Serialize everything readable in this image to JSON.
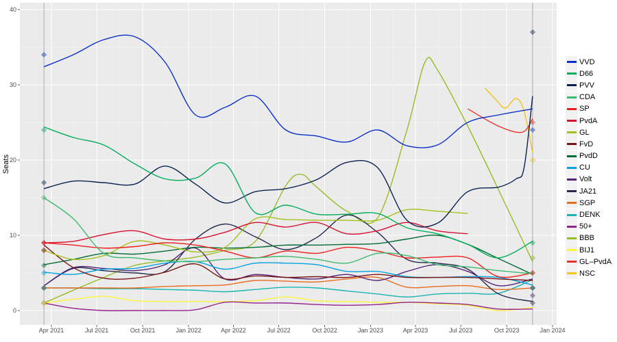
{
  "chart_data": {
    "type": "line",
    "ylabel": "Seats",
    "xlabel": "",
    "ylim": [
      -2,
      41
    ],
    "xlim": [
      "2021-02-01",
      "2024-01-15"
    ],
    "yticks": [
      0,
      10,
      20,
      30,
      40
    ],
    "xticks": [
      {
        "date": "2021-04-01",
        "label": "Apr 2021"
      },
      {
        "date": "2021-07-01",
        "label": "Jul 2021"
      },
      {
        "date": "2021-10-01",
        "label": "Oct 2021"
      },
      {
        "date": "2022-01-01",
        "label": "Jan 2022"
      },
      {
        "date": "2022-04-01",
        "label": "Apr 2022"
      },
      {
        "date": "2022-07-01",
        "label": "Jul 2022"
      },
      {
        "date": "2022-10-01",
        "label": "Oct 2022"
      },
      {
        "date": "2023-01-01",
        "label": "Jan 2023"
      },
      {
        "date": "2023-04-01",
        "label": "Apr 2023"
      },
      {
        "date": "2023-07-01",
        "label": "Jul 2023"
      },
      {
        "date": "2023-10-01",
        "label": "Oct 2023"
      },
      {
        "date": "2024-01-01",
        "label": "Jan 2024"
      }
    ],
    "grid": true,
    "legend_position": "right",
    "election_dates": [
      "2021-03-17",
      "2023-11-22"
    ],
    "dates": [
      "2021-03-17",
      "2021-05-15",
      "2021-07-15",
      "2021-09-15",
      "2021-11-15",
      "2022-01-15",
      "2022-03-15",
      "2022-05-15",
      "2022-07-15",
      "2022-09-15",
      "2022-11-15",
      "2023-01-15",
      "2023-03-15",
      "2023-05-15",
      "2023-07-15",
      "2023-09-15",
      "2023-11-22"
    ],
    "series": [
      {
        "name": "VVD",
        "color": "#0a2fc8",
        "values": [
          32.4,
          34,
          36,
          36.4,
          33,
          26,
          27,
          28.5,
          24,
          23.2,
          22.4,
          24,
          21.9,
          22,
          25,
          26,
          26.8
        ]
      },
      {
        "name": "D66",
        "color": "#00ae5a",
        "values": [
          24.4,
          23,
          22,
          19.5,
          17.5,
          17.6,
          19.5,
          13,
          14,
          12.8,
          12.8,
          12.9,
          11,
          10.2,
          8.8,
          7,
          9.2
        ]
      },
      {
        "name": "PVV",
        "color": "#0b2050",
        "points": [
          [
            "2021-03-17",
            16.2
          ],
          [
            "2021-05-15",
            17.2
          ],
          [
            "2021-07-15",
            17
          ],
          [
            "2021-09-15",
            16.8
          ],
          [
            "2021-11-15",
            19.2
          ],
          [
            "2022-01-15",
            16.8
          ],
          [
            "2022-03-15",
            14.3
          ],
          [
            "2022-05-15",
            15.8
          ],
          [
            "2022-07-15",
            16.2
          ],
          [
            "2022-09-15",
            17.4
          ],
          [
            "2022-11-15",
            19.7
          ],
          [
            "2023-01-15",
            19
          ],
          [
            "2023-03-15",
            12
          ],
          [
            "2023-05-15",
            11.6
          ],
          [
            "2023-07-15",
            15.8
          ],
          [
            "2023-09-15",
            16.4
          ],
          [
            "2023-10-20",
            17.5
          ],
          [
            "2023-11-05",
            19
          ],
          [
            "2023-11-22",
            28.5
          ]
        ]
      },
      {
        "name": "CDA",
        "color": "#3cbb6c",
        "values": [
          15,
          12.2,
          7.6,
          7,
          6.6,
          6.5,
          6.8,
          7,
          7.2,
          6.8,
          6.3,
          7.6,
          7.3,
          6.1,
          5.8,
          5.3,
          4.9
        ]
      },
      {
        "name": "SP",
        "color": "#ee1c1c",
        "values": [
          9,
          8.7,
          8.3,
          8.5,
          9,
          8.7,
          7.9,
          7,
          7.9,
          7.6,
          8.4,
          7.9,
          7,
          7.1,
          7,
          4.5,
          5
        ]
      },
      {
        "name": "PvdA",
        "color": "#d6102f",
        "values": [
          9,
          9.2,
          10.1,
          10.6,
          9.5,
          9.5,
          10.4,
          11.7,
          11.1,
          11.7,
          10.2,
          10.6,
          11.7,
          10.6,
          10.2,
          null,
          null
        ]
      },
      {
        "name": "GL",
        "color": "#a3c21c",
        "values": [
          8,
          6.8,
          7.3,
          9.2,
          8.7,
          7.8,
          8.4,
          12.2,
          12.1,
          12,
          12,
          12,
          13.4,
          13.2,
          12.9,
          null,
          null
        ]
      },
      {
        "name": "FvD",
        "color": "#7a1414",
        "values": [
          8.7,
          5.7,
          4.3,
          4.3,
          5.1,
          6.2,
          4.2,
          4.6,
          4.4,
          4.5,
          4.4,
          4.8,
          4.4,
          4.4,
          4.4,
          4.2,
          4
        ]
      },
      {
        "name": "PvdD",
        "color": "#006b35",
        "values": [
          6.1,
          6.8,
          7.6,
          7.5,
          7.9,
          8.4,
          8.3,
          8.4,
          8.7,
          8.7,
          8.8,
          8.9,
          9.5,
          10,
          8.8,
          6.9,
          4.8
        ]
      },
      {
        "name": "CU",
        "color": "#00a3e0",
        "values": [
          5.1,
          4.8,
          5.5,
          5.6,
          6.3,
          6.5,
          5.5,
          6.3,
          6.3,
          6.1,
          5.2,
          5.2,
          4.5,
          4.4,
          4.5,
          4.4,
          3.4
        ]
      },
      {
        "name": "Volt",
        "color": "#502379",
        "values": [
          3.3,
          5.7,
          5.6,
          5.3,
          6.1,
          8.3,
          4.2,
          4.8,
          4.4,
          4.2,
          4.8,
          4,
          5.2,
          6.1,
          5.2,
          3.3,
          4.2
        ]
      },
      {
        "name": "JA21",
        "color": "#242a4b",
        "values": [
          3.3,
          5.6,
          5.3,
          5,
          5.2,
          9.5,
          11.5,
          9.8,
          8.1,
          9.7,
          12.7,
          10.4,
          6.8,
          6.3,
          5.5,
          2.2,
          1.2
        ]
      },
      {
        "name": "SGP",
        "color": "#e96b1c",
        "values": [
          3,
          3,
          3,
          3,
          3.2,
          3.3,
          3.4,
          4,
          3.9,
          3.8,
          4.2,
          4.4,
          3.1,
          3.2,
          3.3,
          2.8,
          3
        ]
      },
      {
        "name": "DENK",
        "color": "#17b5b1",
        "values": [
          3,
          3,
          2.9,
          2.9,
          2.8,
          2.7,
          2.5,
          2.8,
          3.1,
          3,
          2.6,
          2.2,
          1.8,
          2.2,
          2.3,
          2.3,
          4.1
        ]
      },
      {
        "name": "50+",
        "color": "#93238e",
        "values": [
          1,
          0.3,
          0,
          0,
          0,
          0.1,
          1.1,
          1,
          1,
          0.8,
          0.7,
          0.8,
          1.1,
          1,
          0.8,
          0.2,
          0.2
        ]
      },
      {
        "name": "BBB",
        "color": "#95bd25",
        "points": [
          [
            "2021-03-17",
            1
          ],
          [
            "2021-05-15",
            2.7
          ],
          [
            "2021-07-15",
            4.4
          ],
          [
            "2021-09-15",
            6
          ],
          [
            "2021-11-15",
            6.6
          ],
          [
            "2022-01-15",
            7.1
          ],
          [
            "2022-03-15",
            8
          ],
          [
            "2022-05-15",
            9.2
          ],
          [
            "2022-07-15",
            16.6
          ],
          [
            "2022-08-15",
            18.1
          ],
          [
            "2022-09-15",
            16.4
          ],
          [
            "2022-11-15",
            13.2
          ],
          [
            "2023-01-15",
            12.3
          ],
          [
            "2023-03-15",
            24
          ],
          [
            "2023-04-20",
            33
          ],
          [
            "2023-05-15",
            32
          ],
          [
            "2023-07-15",
            24.5
          ],
          [
            "2023-09-15",
            16
          ],
          [
            "2023-11-22",
            6.5
          ]
        ]
      },
      {
        "name": "BIJ1",
        "color": "#fff43a",
        "values": [
          1,
          1.5,
          1.9,
          1.3,
          1.2,
          1.2,
          1.2,
          1.3,
          1.8,
          1.3,
          1.2,
          1.1,
          1.1,
          0.9,
          0.7,
          0,
          0.4
        ]
      },
      {
        "name": "GL–PvdA",
        "color": "#e5332a",
        "points": [
          [
            "2023-07-15",
            26.8
          ],
          [
            "2023-09-15",
            24.5
          ],
          [
            "2023-11-01",
            23.7
          ],
          [
            "2023-11-22",
            25.5
          ]
        ]
      },
      {
        "name": "NSC",
        "color": "#f2c41c",
        "points": [
          [
            "2023-08-18",
            29.6
          ],
          [
            "2023-09-10",
            28
          ],
          [
            "2023-09-28",
            26.9
          ],
          [
            "2023-10-20",
            28.2
          ],
          [
            "2023-11-05",
            26.5
          ],
          [
            "2023-11-22",
            21
          ]
        ]
      }
    ],
    "results": [
      {
        "date": "2021-03-17",
        "values": {
          "VVD": 34,
          "D66": 24,
          "PVV": 17,
          "CDA": 15,
          "SP": 9,
          "PvdA": 9,
          "GL": 8,
          "FvD": 8,
          "PvdD": 6,
          "CU": 5,
          "Volt": 3,
          "JA21": 3,
          "SGP": 3,
          "DENK": 3,
          "50+": 1,
          "BBB": 1,
          "BIJ1": 1
        }
      },
      {
        "date": "2023-11-22",
        "values": {
          "PVV": 37,
          "GL–PvdA": 25,
          "VVD": 24,
          "NSC": 20,
          "D66": 9,
          "BBB": 7,
          "CDA": 5,
          "SP": 5,
          "DENK": 3,
          "PvdD": 3,
          "FvD": 3,
          "SGP": 3,
          "CU": 3,
          "Volt": 2,
          "JA21": 1
        }
      }
    ]
  }
}
